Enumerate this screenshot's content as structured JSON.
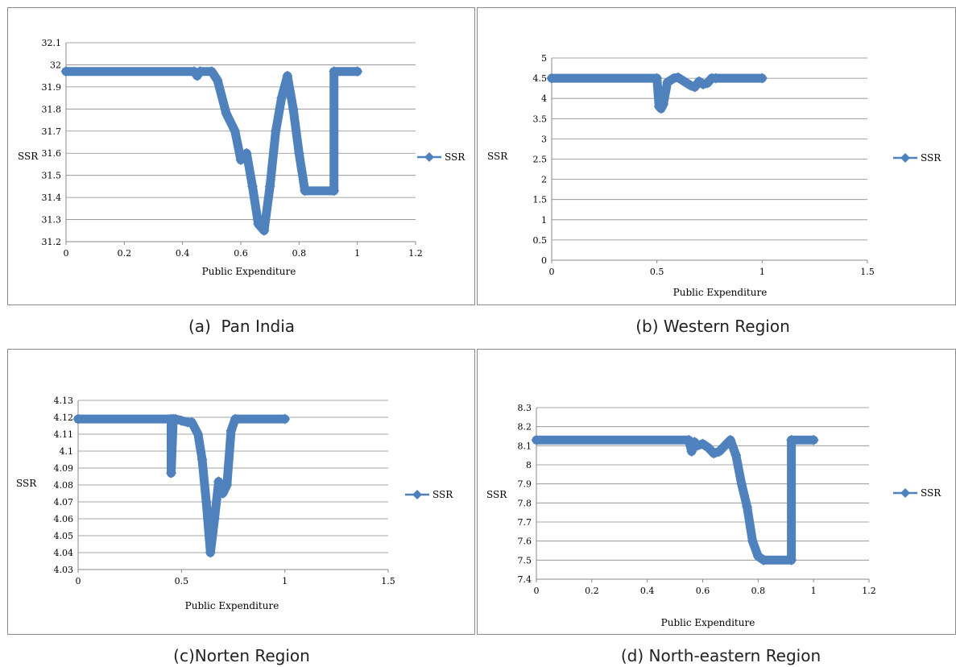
{
  "chart_data": [
    {
      "type": "line",
      "caption": "(a)  Pan India",
      "xlabel": "Public Expenditure",
      "ylabel": "SSR",
      "xlim": [
        0,
        1.2
      ],
      "ylim": [
        31.2,
        32.1
      ],
      "xticks": [
        "0",
        "0.2",
        "0.4",
        "0.6",
        "0.8",
        "1",
        "1.2"
      ],
      "yticks": [
        "31.2",
        "31.3",
        "31.4",
        "31.5",
        "31.6",
        "31.7",
        "31.8",
        "31.9",
        "32",
        "32.1"
      ],
      "grid": true,
      "legend": "right",
      "series": [
        {
          "name": "SSR",
          "color": "#4f81bd",
          "x": [
            0,
            0.44,
            0.45,
            0.46,
            0.5,
            0.52,
            0.55,
            0.58,
            0.6,
            0.62,
            0.64,
            0.66,
            0.68,
            0.7,
            0.72,
            0.74,
            0.76,
            0.78,
            0.8,
            0.82,
            0.92,
            0.92,
            1.0
          ],
          "y": [
            31.97,
            31.97,
            31.95,
            31.97,
            31.97,
            31.93,
            31.78,
            31.7,
            31.57,
            31.6,
            31.45,
            31.28,
            31.25,
            31.45,
            31.7,
            31.85,
            31.95,
            31.8,
            31.6,
            31.43,
            31.43,
            31.97,
            31.97
          ]
        }
      ]
    },
    {
      "type": "line",
      "caption": "(b) Western Region",
      "xlabel": "Public Expenditure",
      "ylabel": "SSR",
      "xlim": [
        0,
        1.5
      ],
      "ylim": [
        0,
        5
      ],
      "xticks": [
        "0",
        "0.5",
        "1",
        "1.5"
      ],
      "yticks": [
        "0",
        "0.5",
        "1",
        "1.5",
        "2",
        "2.5",
        "3",
        "3.5",
        "4",
        "4.5",
        "5"
      ],
      "grid": true,
      "legend": "right",
      "series": [
        {
          "name": "SSR",
          "color": "#4f81bd",
          "x": [
            0,
            0.5,
            0.51,
            0.52,
            0.53,
            0.55,
            0.58,
            0.6,
            0.63,
            0.66,
            0.68,
            0.7,
            0.72,
            0.74,
            0.76,
            0.78,
            1.0
          ],
          "y": [
            4.5,
            4.5,
            3.8,
            3.75,
            3.85,
            4.4,
            4.5,
            4.52,
            4.42,
            4.32,
            4.28,
            4.42,
            4.35,
            4.38,
            4.5,
            4.5,
            4.5
          ]
        }
      ]
    },
    {
      "type": "line",
      "caption": "(c)Norten Region",
      "xlabel": "Public Expenditure",
      "ylabel": "SSR",
      "xlim": [
        0,
        1.5
      ],
      "ylim": [
        4.03,
        4.13
      ],
      "xticks": [
        "0",
        "0.5",
        "1",
        "1.5"
      ],
      "yticks": [
        "4.03",
        "4.04",
        "4.05",
        "4.06",
        "4.07",
        "4.08",
        "4.09",
        "4.1",
        "4.11",
        "4.12",
        "4.13"
      ],
      "grid": true,
      "legend": "right",
      "series": [
        {
          "name": "SSR",
          "color": "#4f81bd",
          "x": [
            0,
            0.45,
            0.45,
            0.46,
            0.47,
            0.5,
            0.53,
            0.55,
            0.58,
            0.6,
            0.62,
            0.64,
            0.66,
            0.68,
            0.7,
            0.72,
            0.74,
            0.76,
            1.0
          ],
          "y": [
            4.119,
            4.119,
            4.087,
            4.119,
            4.119,
            4.118,
            4.117,
            4.117,
            4.11,
            4.095,
            4.07,
            4.04,
            4.06,
            4.082,
            4.075,
            4.08,
            4.112,
            4.119,
            4.119
          ]
        }
      ]
    },
    {
      "type": "line",
      "caption": "(d) North-eastern Region",
      "xlabel": "Public Expenditure",
      "ylabel": "SSR",
      "xlim": [
        0,
        1.2
      ],
      "ylim": [
        7.4,
        8.3
      ],
      "xticks": [
        "0",
        "0.2",
        "0.4",
        "0.6",
        "0.8",
        "1",
        "1.2"
      ],
      "yticks": [
        "7.4",
        "7.5",
        "7.6",
        "7.7",
        "7.8",
        "7.9",
        "8",
        "8.1",
        "8.2",
        "8.3"
      ],
      "grid": true,
      "legend": "right",
      "series": [
        {
          "name": "SSR",
          "color": "#4f81bd",
          "x": [
            0,
            0.55,
            0.56,
            0.57,
            0.58,
            0.6,
            0.62,
            0.64,
            0.66,
            0.68,
            0.7,
            0.72,
            0.74,
            0.76,
            0.78,
            0.8,
            0.82,
            0.92,
            0.92,
            1.0
          ],
          "y": [
            8.13,
            8.13,
            8.07,
            8.12,
            8.1,
            8.11,
            8.09,
            8.06,
            8.07,
            8.1,
            8.13,
            8.05,
            7.9,
            7.78,
            7.6,
            7.52,
            7.5,
            7.5,
            8.13,
            8.13
          ]
        }
      ]
    }
  ]
}
